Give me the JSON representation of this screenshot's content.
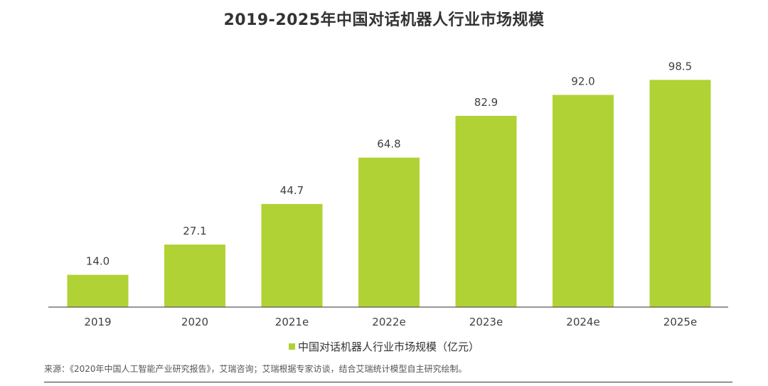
{
  "chart_data": {
    "type": "bar",
    "title": "2019-2025年中国对话机器人行业市场规模",
    "categories": [
      "2019",
      "2020",
      "2021e",
      "2022e",
      "2023e",
      "2024e",
      "2025e"
    ],
    "series": [
      {
        "name": "中国对话机器人行业市场规模（亿元）",
        "values": [
          14.0,
          27.1,
          44.7,
          64.8,
          82.9,
          92.0,
          98.5
        ],
        "value_labels": [
          "14.0",
          "27.1",
          "44.7",
          "64.8",
          "82.9",
          "92.0",
          "98.5"
        ]
      }
    ],
    "xlabel": "",
    "ylabel": "",
    "ylim": [
      0,
      100
    ],
    "grid": false,
    "legend": "bottom",
    "bar_color": "#b1d235",
    "axis_color": "#595959"
  },
  "source_note": "来源：《2020年中国人工智能产业研究报告》，艾瑞咨询；艾瑞根据专家访谈，结合艾瑞统计模型自主研究绘制。"
}
